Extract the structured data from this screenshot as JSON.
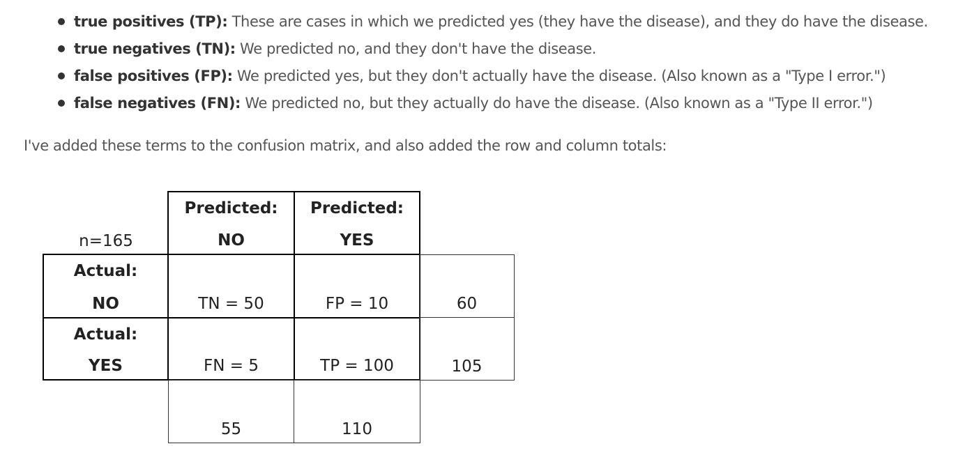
{
  "bullets": [
    {
      "term": "true positives (TP):",
      "text": " These are cases in which we predicted yes (they have the disease), and they do have the disease."
    },
    {
      "term": "true negatives (TN):",
      "text": " We predicted no, and they don't have the disease."
    },
    {
      "term": "false positives (FP):",
      "text": " We predicted yes, but they don't actually have the disease. (Also known as a \"Type I error.\")"
    },
    {
      "term": "false negatives (FN):",
      "text": " We predicted no, but they actually do have the disease. (Also known as a \"Type II error.\")"
    }
  ],
  "intro": "I've added these terms to the confusion matrix, and also added the row and column totals:",
  "matrix": {
    "n_label": "n=165",
    "col_headers": [
      {
        "line1": "Predicted:",
        "line2": "NO"
      },
      {
        "line1": "Predicted:",
        "line2": "YES"
      }
    ],
    "row_headers": [
      {
        "line1": "Actual:",
        "line2": "NO"
      },
      {
        "line1": "Actual:",
        "line2": "YES"
      }
    ],
    "cells": [
      [
        "TN = 50",
        "FP = 10"
      ],
      [
        "FN = 5",
        "TP = 100"
      ]
    ],
    "row_totals": [
      "60",
      "105"
    ],
    "col_totals": [
      "55",
      "110"
    ]
  }
}
